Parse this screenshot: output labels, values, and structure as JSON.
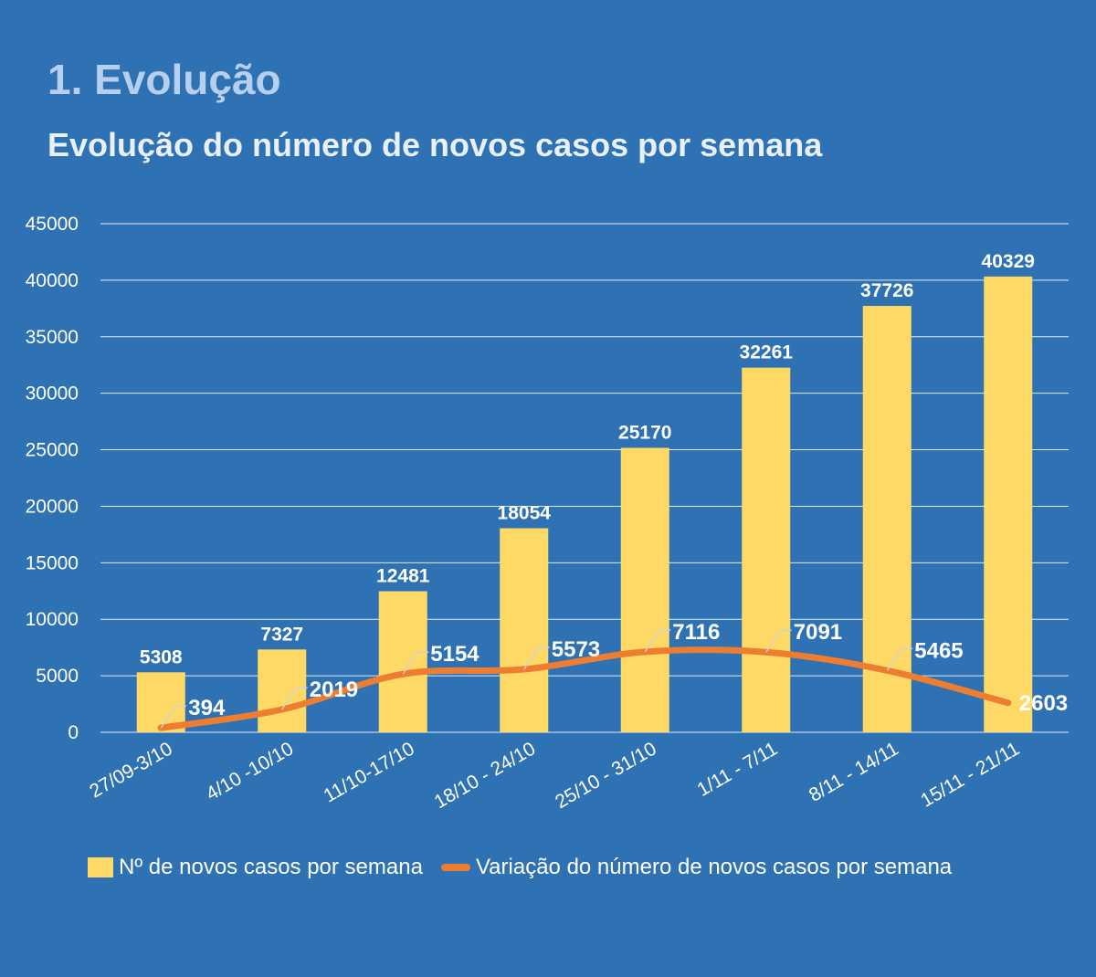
{
  "page": {
    "section_title": "1. Evolução",
    "chart_title": "Evolução do número de novos casos por semana"
  },
  "colors": {
    "background": "#2f72b3",
    "bar": "#ffd966",
    "line": "#ed7d31",
    "gridline": "#ffffff",
    "text": "#ffffff"
  },
  "chart_data": {
    "type": "bar",
    "title": "Evolução do número de novos casos por semana",
    "categories": [
      "27/09-3/10",
      "4/10 -10/10",
      "11/10-17/10",
      "18/10 - 24/10",
      "25/10 - 31/10",
      "1/11 - 7/11",
      "8/11 - 14/11",
      "15/11 - 21/11"
    ],
    "ylim": [
      0,
      45000
    ],
    "yticks": [
      "0",
      "5000",
      "10000",
      "15000",
      "20000",
      "25000",
      "30000",
      "35000",
      "40000",
      "45000"
    ],
    "grid": true,
    "legend_position": "bottom",
    "series": [
      {
        "name": "Nº de novos casos por semana",
        "type": "bar",
        "values": [
          5308,
          7327,
          12481,
          18054,
          25170,
          32261,
          37726,
          40329
        ],
        "labels": [
          "5308",
          "7327",
          "12481",
          "18054",
          "25170",
          "32261",
          "37726",
          "40329"
        ]
      },
      {
        "name": "Variação do número de novos casos por semana",
        "type": "line",
        "values": [
          394,
          2019,
          5154,
          5573,
          7116,
          7091,
          5465,
          2603
        ],
        "labels": [
          "394",
          "2019",
          "5154",
          "5573",
          "7116",
          "7091",
          "5465",
          "2603"
        ]
      }
    ]
  }
}
